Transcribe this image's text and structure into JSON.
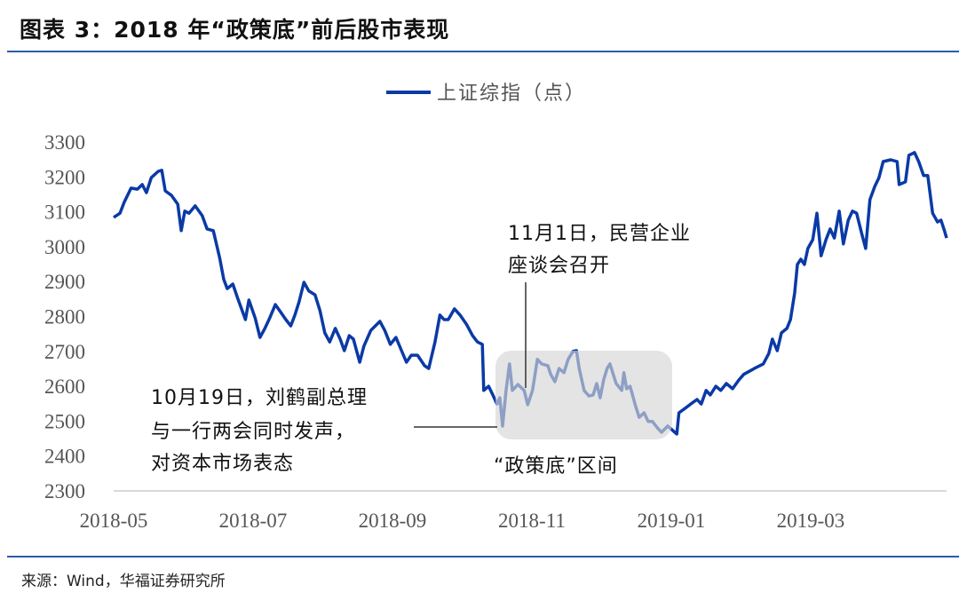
{
  "title": "图表 3：2018 年“政策底”前后股市表现",
  "source": "来源：Wind，华福证券研究所",
  "colors": {
    "line": "#0a3aa6",
    "rule": "#2a5ca8",
    "highlight": "#d6d6d6"
  },
  "chart_data": {
    "type": "line",
    "title": "",
    "xlabel": "",
    "ylabel": "",
    "x_unit": "months since 2018-05",
    "xlim": [
      0,
      11.95
    ],
    "ylim": [
      2300,
      3300
    ],
    "yticks": [
      "2300",
      "2400",
      "2500",
      "2600",
      "2700",
      "2800",
      "2900",
      "3000",
      "3100",
      "3200",
      "3300"
    ],
    "xticks": [
      {
        "at": 0,
        "label": "2018-05"
      },
      {
        "at": 2,
        "label": "2018-07"
      },
      {
        "at": 4,
        "label": "2018-09"
      },
      {
        "at": 6,
        "label": "2018-11"
      },
      {
        "at": 8,
        "label": "2019-01"
      },
      {
        "at": 10,
        "label": "2019-03"
      }
    ],
    "grid": false,
    "legend": {
      "position": "top-center",
      "entries": [
        "上证综指（点）"
      ]
    },
    "series": [
      {
        "name": "上证综指（点）",
        "x": [
          0,
          0.09,
          0.15,
          0.25,
          0.34,
          0.41,
          0.47,
          0.54,
          0.64,
          0.69,
          0.74,
          0.83,
          0.92,
          0.97,
          1.02,
          1.08,
          1.17,
          1.27,
          1.34,
          1.43,
          1.52,
          1.58,
          1.63,
          1.71,
          1.78,
          1.89,
          1.94,
          2.03,
          2.1,
          2.17,
          2.24,
          2.32,
          2.38,
          2.47,
          2.54,
          2.6,
          2.66,
          2.73,
          2.8,
          2.89,
          2.96,
          3.03,
          3.1,
          3.18,
          3.25,
          3.31,
          3.38,
          3.44,
          3.53,
          3.59,
          3.69,
          3.82,
          3.89,
          3.97,
          4.05,
          4.13,
          4.2,
          4.27,
          4.36,
          4.46,
          4.52,
          4.61,
          4.68,
          4.74,
          4.8,
          4.89,
          4.97,
          5.06,
          5.15,
          5.22,
          5.29,
          5.31,
          5.38,
          5.44,
          5.5,
          5.54,
          5.58,
          5.63,
          5.68,
          5.72,
          5.8,
          5.89,
          5.94,
          6.01,
          6.08,
          6.14,
          6.23,
          6.27,
          6.33,
          6.39,
          6.46,
          6.52,
          6.59,
          6.64,
          6.68,
          6.75,
          6.82,
          6.88,
          6.93,
          6.98,
          7.03,
          7.08,
          7.12,
          7.16,
          7.21,
          7.29,
          7.32,
          7.36,
          7.41,
          7.48,
          7.54,
          7.61,
          7.67,
          7.73,
          7.8,
          7.86,
          7.95,
          8.08,
          8.11,
          8.2,
          8.28,
          8.37,
          8.43,
          8.5,
          8.56,
          8.64,
          8.71,
          8.79,
          8.88,
          8.97,
          9.04,
          9.13,
          9.22,
          9.32,
          9.4,
          9.45,
          9.52,
          9.58,
          9.66,
          9.71,
          9.77,
          9.81,
          9.86,
          9.91,
          9.96,
          10.03,
          10.09,
          10.15,
          10.22,
          10.28,
          10.34,
          10.41,
          10.47,
          10.54,
          10.6,
          10.66,
          10.73,
          10.79,
          10.85,
          10.92,
          10.98,
          11.04,
          11.15,
          11.24,
          11.27,
          11.36,
          11.41,
          11.49,
          11.55,
          11.62,
          11.68,
          11.75,
          11.82,
          11.87,
          11.92,
          11.95
        ],
        "y": [
          3084,
          3096,
          3127,
          3168,
          3165,
          3178,
          3155,
          3198,
          3216,
          3219,
          3160,
          3147,
          3122,
          3046,
          3102,
          3096,
          3117,
          3089,
          3051,
          3046,
          2969,
          2906,
          2880,
          2893,
          2852,
          2791,
          2847,
          2796,
          2740,
          2766,
          2796,
          2834,
          2817,
          2791,
          2773,
          2804,
          2842,
          2898,
          2873,
          2862,
          2817,
          2753,
          2727,
          2766,
          2735,
          2702,
          2745,
          2735,
          2669,
          2715,
          2760,
          2786,
          2760,
          2720,
          2740,
          2702,
          2669,
          2689,
          2689,
          2659,
          2651,
          2727,
          2804,
          2791,
          2791,
          2822,
          2804,
          2778,
          2745,
          2727,
          2720,
          2588,
          2600,
          2575,
          2549,
          2567,
          2486,
          2588,
          2664,
          2588,
          2605,
          2588,
          2547,
          2588,
          2677,
          2664,
          2659,
          2634,
          2613,
          2651,
          2639,
          2677,
          2700,
          2702,
          2651,
          2588,
          2572,
          2575,
          2608,
          2567,
          2618,
          2651,
          2664,
          2639,
          2608,
          2588,
          2639,
          2593,
          2600,
          2549,
          2511,
          2524,
          2499,
          2499,
          2481,
          2468,
          2486,
          2463,
          2524,
          2537,
          2549,
          2562,
          2549,
          2588,
          2575,
          2600,
          2588,
          2608,
          2593,
          2618,
          2634,
          2644,
          2654,
          2664,
          2694,
          2735,
          2702,
          2753,
          2766,
          2791,
          2867,
          2949,
          2964,
          2949,
          2995,
          3020,
          3096,
          2974,
          3020,
          3051,
          3025,
          3102,
          3008,
          3076,
          3102,
          3096,
          3040,
          2995,
          3135,
          3173,
          3198,
          3244,
          3249,
          3244,
          3178,
          3186,
          3262,
          3270,
          3244,
          3204,
          3204,
          3096,
          3071,
          3076,
          3046,
          3025
        ]
      }
    ],
    "highlight_region": {
      "label": "“政策底”区间",
      "x_range": [
        5.5,
        8.1
      ],
      "y_range": [
        2450,
        2700
      ]
    },
    "annotations": [
      {
        "lines": [
          "11月1日，民营企业",
          "座谈会召开"
        ],
        "at": {
          "x": 5.92,
          "y": 2590
        }
      },
      {
        "lines": [
          "10月19日，刘鹤副总理",
          "与一行两会同时发声，",
          "对资本市场表态"
        ],
        "at": {
          "x": 5.5,
          "y": 2500
        }
      }
    ]
  }
}
